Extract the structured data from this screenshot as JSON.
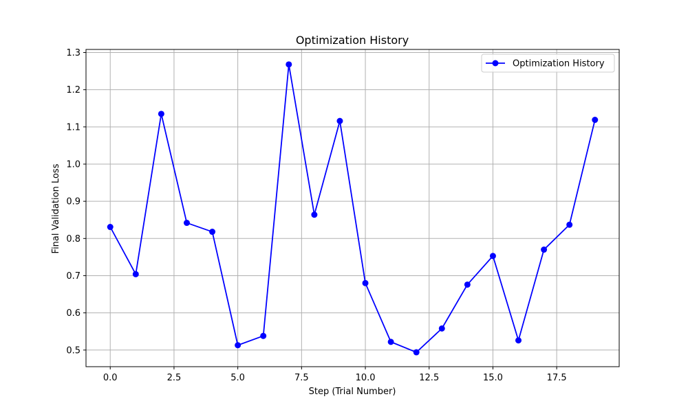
{
  "chart_data": {
    "type": "line",
    "title": "Optimization History",
    "xlabel": "Step (Trial Number)",
    "ylabel": "Final Validation Loss",
    "xlim": [
      -0.95,
      19.95
    ],
    "ylim": [
      0.4553,
      1.3083
    ],
    "xticks": [
      0.0,
      2.5,
      5.0,
      7.5,
      10.0,
      12.5,
      15.0,
      17.5
    ],
    "xtick_labels": [
      "0.0",
      "2.5",
      "5.0",
      "7.5",
      "10.0",
      "12.5",
      "15.0",
      "17.5"
    ],
    "yticks": [
      0.5,
      0.6,
      0.7,
      0.8,
      0.9,
      1.0,
      1.1,
      1.2,
      1.3
    ],
    "ytick_labels": [
      "0.5",
      "0.6",
      "0.7",
      "0.8",
      "0.9",
      "1.0",
      "1.1",
      "1.2",
      "1.3"
    ],
    "grid": true,
    "legend_position": "top-right",
    "series": [
      {
        "name": "Optimization History",
        "color": "#0000ff",
        "marker": "circle",
        "x": [
          0,
          1,
          2,
          3,
          4,
          5,
          6,
          7,
          8,
          9,
          10,
          11,
          12,
          13,
          14,
          15,
          16,
          17,
          18,
          19
        ],
        "y": [
          0.831,
          0.704,
          1.135,
          0.842,
          0.818,
          0.513,
          0.538,
          1.268,
          0.864,
          1.116,
          0.68,
          0.522,
          0.494,
          0.558,
          0.676,
          0.753,
          0.526,
          0.77,
          0.837,
          1.119
        ]
      }
    ]
  }
}
